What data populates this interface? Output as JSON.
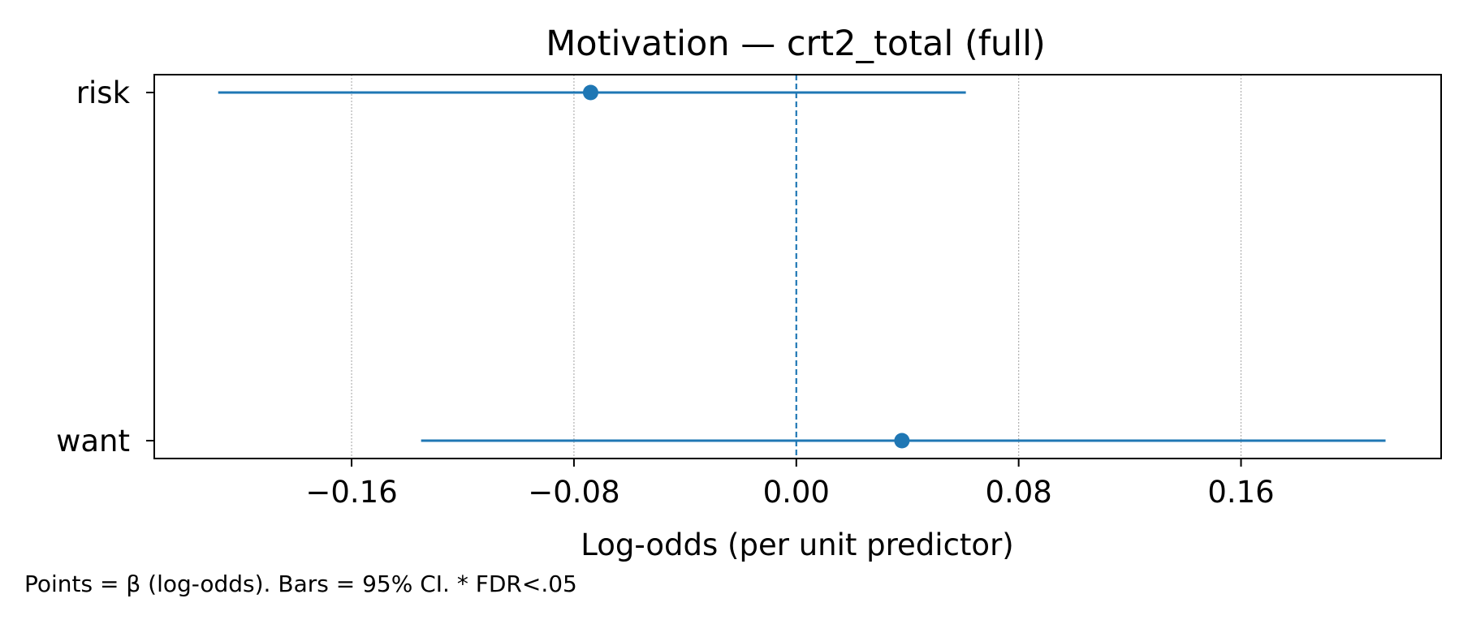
{
  "chart_data": {
    "type": "scatter",
    "title": "Motivation — crt2_total (full)",
    "xlabel": "Log-odds (per unit predictor)",
    "ylabel": "",
    "xlim": [
      -0.231,
      0.232
    ],
    "xticks": [
      -0.16,
      -0.08,
      0.0,
      0.08,
      0.16
    ],
    "xtick_labels": [
      "−0.16",
      "−0.08",
      "0.00",
      "0.08",
      "0.16"
    ],
    "categories": [
      "risk",
      "want"
    ],
    "estimates": [
      -0.074,
      0.038
    ],
    "ci_low": [
      -0.208,
      -0.135
    ],
    "ci_high": [
      0.061,
      0.212
    ],
    "reference_line": 0.0,
    "grid": "x-dotted",
    "legend": "none",
    "color": "#1f77b4",
    "caption": "Points = β (log-odds). Bars = 95% CI. * FDR<.05"
  }
}
